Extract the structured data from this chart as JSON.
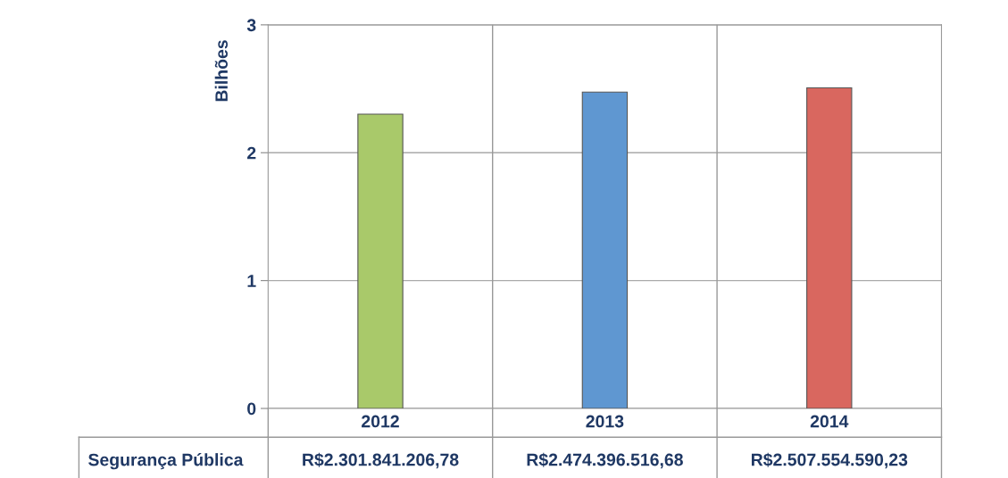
{
  "chart_data": {
    "type": "bar",
    "ylabel": "Bilhões",
    "categories": [
      "2012",
      "2013",
      "2014"
    ],
    "series": [
      {
        "name": "Segurança Pública",
        "colors": [
          "#a9c96a",
          "#5f97d1",
          "#d9675f"
        ],
        "values": [
          2.30184120678,
          2.47439651668,
          2.50755459023
        ],
        "value_labels": [
          "R$2.301.841.206,78",
          "R$2.474.396.516,68",
          "R$2.507.554.590,23"
        ]
      }
    ],
    "ylim": [
      0,
      3
    ],
    "yticks": [
      0,
      1,
      2,
      3
    ],
    "grid": "y",
    "legend": false
  }
}
